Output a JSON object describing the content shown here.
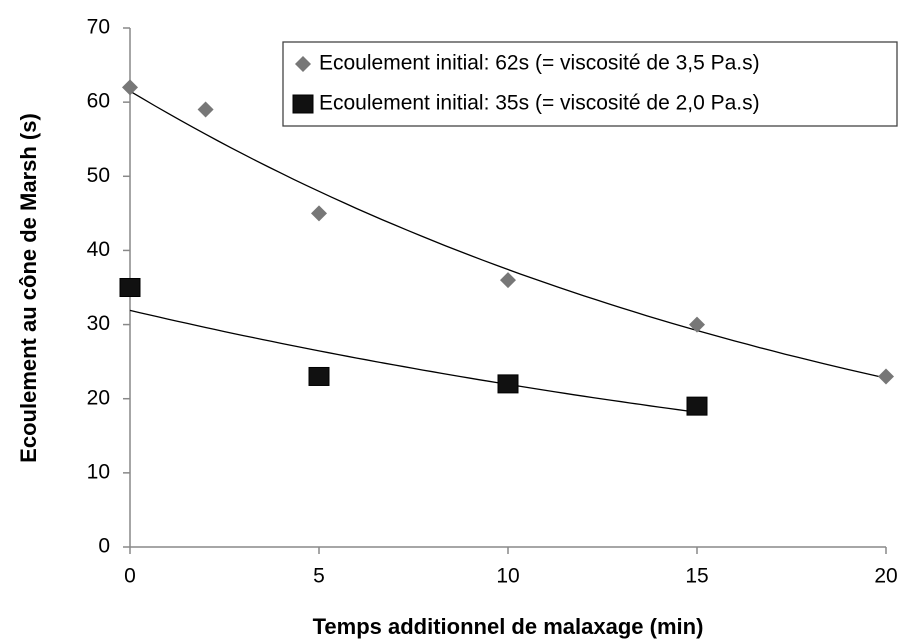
{
  "chart_data": {
    "type": "scatter",
    "x_label": "Temps additionnel de malaxage (min)",
    "y_label": "Ecoulement au cône de Marsh (s)",
    "xlim": [
      0,
      20
    ],
    "xticks": [
      0,
      5,
      10,
      15,
      20
    ],
    "ylim": [
      0,
      70
    ],
    "yticks": [
      0,
      10,
      20,
      30,
      40,
      50,
      60,
      70
    ],
    "trendline": "exponential",
    "legend": "upper right",
    "series": [
      {
        "name": "Ecoulement initial: 62s (= viscosité de 3,5 Pa.s)",
        "color": "#777777",
        "marker": "diamond",
        "x": [
          0,
          2,
          5,
          10,
          15,
          20
        ],
        "values": [
          62,
          59,
          45,
          36,
          30,
          23
        ]
      },
      {
        "name": "Ecoulement initial: 35s (= viscosité de 2,0 Pa.s)",
        "color": "#111111",
        "marker": "square",
        "x": [
          0,
          5,
          10,
          15
        ],
        "values": [
          35,
          23,
          22,
          19
        ]
      }
    ]
  }
}
